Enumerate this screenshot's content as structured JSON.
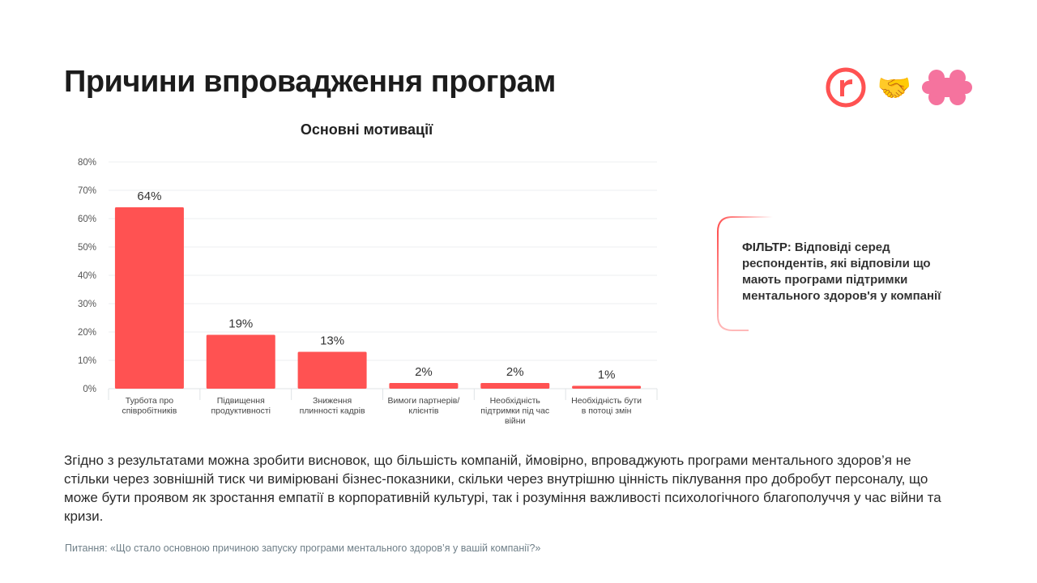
{
  "header": {
    "title": "Причини впровадження програм"
  },
  "logos": [
    {
      "name": "r-logo-icon",
      "letter": "r",
      "color": "#ff5252"
    },
    {
      "name": "handshake-icon",
      "glyph": "🤝"
    },
    {
      "name": "pink-flower-logo-icon",
      "color": "#f5739e"
    }
  ],
  "chart_data": {
    "type": "bar",
    "title": "Основні мотивації",
    "categories": [
      [
        "Турбота про",
        "співробітників"
      ],
      [
        "Підвищення",
        "продуктивності"
      ],
      [
        "Зниження",
        "плинності кадрів"
      ],
      [
        "Вимоги партнерів/",
        "клієнтів"
      ],
      [
        "Необхідність",
        "підтримки під час",
        "війни"
      ],
      [
        "Необхідність бути",
        "в потоці змін"
      ]
    ],
    "values": [
      64,
      19,
      13,
      2,
      2,
      1
    ],
    "data_labels": [
      "64%",
      "19%",
      "13%",
      "2%",
      "2%",
      "1%"
    ],
    "yticks": [
      "0%",
      "10%",
      "20%",
      "30%",
      "40%",
      "50%",
      "60%",
      "70%",
      "80%"
    ],
    "ylim": [
      0,
      80
    ],
    "xlabel": "",
    "ylabel": "",
    "grid": true,
    "bar_color": "#ff5252",
    "grid_color": "#eceff1"
  },
  "filter": {
    "label": "ФІЛЬТР:",
    "text": " Відповіді серед респондентів, які відповіли що мають програми підтримки ментального здоров'я у компанії",
    "accent_color": "#ff5252"
  },
  "summary": "Згідно з результатами можна зробити висновок, що більшість компаній, ймовірно, впроваджують програми ментального здоров’я не стільки через зовнішній тиск чи вимірювані бізнес-показники, скільки через внутрішню цінність піклування про добробут персоналу, що може бути проявом як зростання емпатії в корпоративній культурі, так і розуміння важливості психологічного благополуччя у час війни та кризи.",
  "question": "Питання: «Що стало основною причиною запуску програми ментального здоров’я у вашій компанії?»"
}
